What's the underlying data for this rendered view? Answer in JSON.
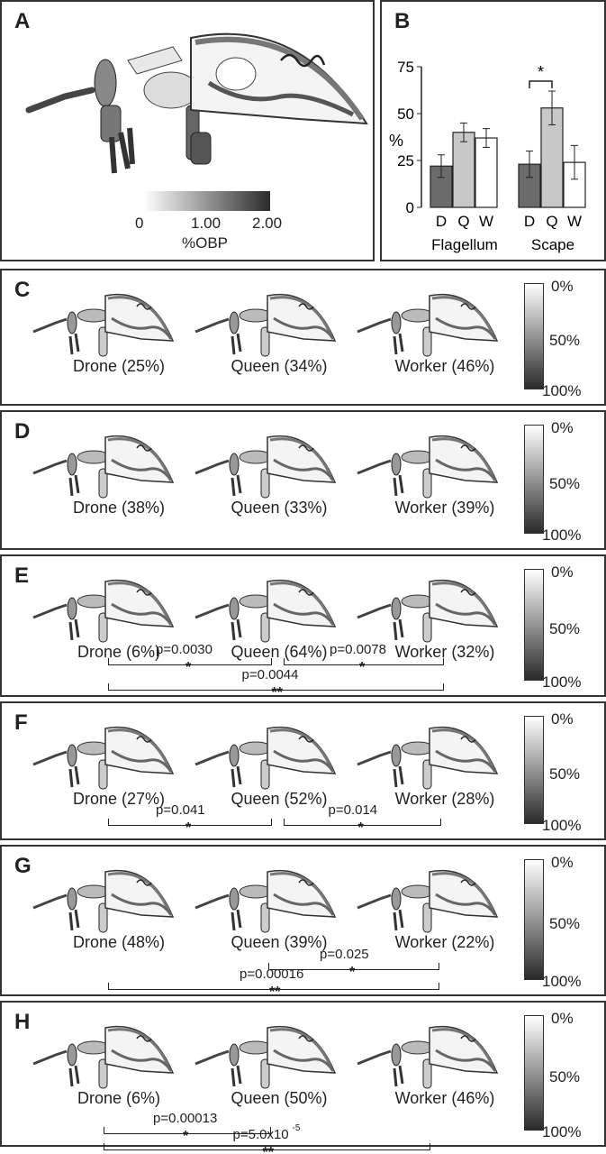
{
  "panels": {
    "a": {
      "letter": "A",
      "colorbar": {
        "min_label": "0",
        "mid_label": "1.00",
        "max_label": "2.00",
        "title": "%OBP"
      }
    },
    "b": {
      "letter": "B",
      "ylabel": "%",
      "significance": "*"
    },
    "rows": [
      {
        "letter": "C",
        "captions": [
          "Drone (25%)",
          "Queen (34%)",
          "Worker (46%)"
        ],
        "scale": {
          "top": "0%",
          "mid": "50%",
          "bottom": "100%"
        },
        "comparisons": []
      },
      {
        "letter": "D",
        "captions": [
          "Drone (38%)",
          "Queen (33%)",
          "Worker (39%)"
        ],
        "scale": {
          "top": "0%",
          "mid": "50%",
          "bottom": "100%"
        },
        "comparisons": []
      },
      {
        "letter": "E",
        "captions": [
          "Drone (6%)",
          "Queen (64%)",
          "Worker (32%)"
        ],
        "scale": {
          "top": "0%",
          "mid": "50%",
          "bottom": "100%"
        },
        "comparisons": [
          {
            "label": "p=0.0030",
            "stars": "*"
          },
          {
            "label": "p=0.0078",
            "stars": "*"
          },
          {
            "label": "p=0.0044",
            "stars": "**"
          }
        ]
      },
      {
        "letter": "F",
        "captions": [
          "Drone (27%)",
          "Queen (52%)",
          "Worker (28%)"
        ],
        "scale": {
          "top": "0%",
          "mid": "50%",
          "bottom": "100%"
        },
        "comparisons": [
          {
            "label": "p=0.041",
            "stars": "*"
          },
          {
            "label": "p=0.014",
            "stars": "*"
          }
        ]
      },
      {
        "letter": "G",
        "captions": [
          "Drone (48%)",
          "Queen (39%)",
          "Worker (22%)"
        ],
        "scale": {
          "top": "0%",
          "mid": "50%",
          "bottom": "100%"
        },
        "comparisons": [
          {
            "label": "p=0.00016",
            "stars": "**"
          },
          {
            "label": "p=0.025",
            "stars": "*"
          }
        ]
      },
      {
        "letter": "H",
        "captions": [
          "Drone (6%)",
          "Queen (50%)",
          "Worker (46%)"
        ],
        "scale": {
          "top": "0%",
          "mid": "50%",
          "bottom": "100%"
        },
        "comparisons": [
          {
            "label": "p=0.00013",
            "stars": "*"
          },
          {
            "label": "p=5.0x10",
            "exp": "-5",
            "stars": "**"
          }
        ]
      }
    ]
  },
  "chart_data": {
    "type": "bar",
    "groups": [
      "Flagellum",
      "Scape"
    ],
    "categories": [
      "D",
      "Q",
      "W"
    ],
    "values": {
      "Flagellum": [
        22,
        40,
        37
      ],
      "Scape": [
        23,
        53,
        24
      ]
    },
    "errors": {
      "Flagellum": [
        6,
        5,
        5
      ],
      "Scape": [
        7,
        9,
        9
      ]
    },
    "bar_colors": {
      "D": "#6b6b6b",
      "Q": "#c8c8c8",
      "W": "#ffffff"
    },
    "ylabel": "%",
    "ylim": [
      0,
      75
    ],
    "yticks": [
      0,
      25,
      50,
      75
    ],
    "significance": {
      "group": "Scape",
      "between": [
        "D",
        "Q"
      ],
      "label": "*"
    }
  }
}
